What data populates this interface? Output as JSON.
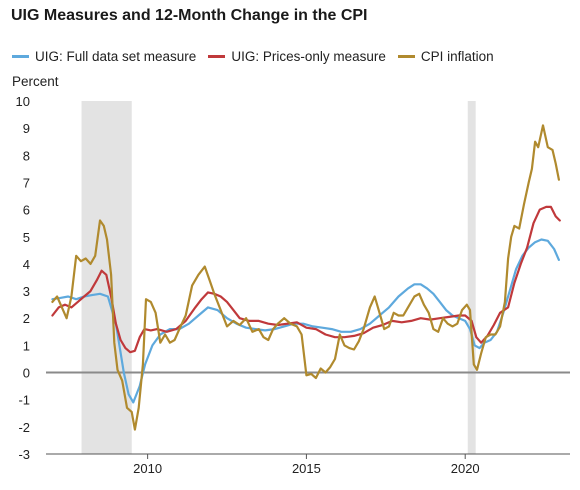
{
  "chart_data": {
    "type": "line",
    "title": "UIG Measures and 12-Month Change in the CPI",
    "ylabel": "Percent",
    "xlabel": "",
    "xlim": [
      2006.8,
      2023.3
    ],
    "ylim": [
      -3,
      10
    ],
    "y_ticks": [
      -3,
      -2,
      -1,
      0,
      1,
      2,
      3,
      4,
      5,
      6,
      7,
      8,
      9,
      10
    ],
    "x_ticks": [
      2010,
      2015,
      2020
    ],
    "y_tick_labels": [
      "-3",
      "-2",
      "-1",
      "0",
      "1",
      "2",
      "3",
      "4",
      "5",
      "6",
      "7",
      "8",
      "9",
      "10"
    ],
    "x_tick_labels": [
      "2010",
      "2015",
      "2020"
    ],
    "grid": "none",
    "zero_line": true,
    "legend_position": "top",
    "recessions": [
      [
        2007.92,
        2009.5
      ],
      [
        2020.08,
        2020.33
      ]
    ],
    "series": [
      {
        "name": "UIG: Full data set measure",
        "color": "#5ea9dd",
        "points": [
          [
            2007.0,
            2.7
          ],
          [
            2007.25,
            2.75
          ],
          [
            2007.5,
            2.8
          ],
          [
            2007.75,
            2.7
          ],
          [
            2008.0,
            2.8
          ],
          [
            2008.25,
            2.85
          ],
          [
            2008.5,
            2.9
          ],
          [
            2008.75,
            2.8
          ],
          [
            2009.0,
            1.8
          ],
          [
            2009.25,
            0.0
          ],
          [
            2009.4,
            -0.8
          ],
          [
            2009.55,
            -1.1
          ],
          [
            2009.75,
            -0.5
          ],
          [
            2009.92,
            0.3
          ],
          [
            2010.15,
            1.0
          ],
          [
            2010.4,
            1.4
          ],
          [
            2010.7,
            1.6
          ],
          [
            2011.0,
            1.6
          ],
          [
            2011.3,
            1.8
          ],
          [
            2011.6,
            2.1
          ],
          [
            2011.9,
            2.4
          ],
          [
            2012.2,
            2.3
          ],
          [
            2012.5,
            2.0
          ],
          [
            2012.8,
            1.8
          ],
          [
            2013.1,
            1.65
          ],
          [
            2013.4,
            1.6
          ],
          [
            2013.7,
            1.55
          ],
          [
            2014.0,
            1.6
          ],
          [
            2014.3,
            1.7
          ],
          [
            2014.6,
            1.8
          ],
          [
            2014.9,
            1.8
          ],
          [
            2015.2,
            1.7
          ],
          [
            2015.5,
            1.65
          ],
          [
            2015.8,
            1.6
          ],
          [
            2016.1,
            1.5
          ],
          [
            2016.4,
            1.5
          ],
          [
            2016.7,
            1.6
          ],
          [
            2017.0,
            1.8
          ],
          [
            2017.3,
            2.1
          ],
          [
            2017.6,
            2.4
          ],
          [
            2017.9,
            2.8
          ],
          [
            2018.2,
            3.1
          ],
          [
            2018.4,
            3.25
          ],
          [
            2018.6,
            3.25
          ],
          [
            2018.8,
            3.1
          ],
          [
            2019.0,
            2.9
          ],
          [
            2019.2,
            2.6
          ],
          [
            2019.4,
            2.3
          ],
          [
            2019.6,
            2.1
          ],
          [
            2019.8,
            2.0
          ],
          [
            2020.0,
            1.9
          ],
          [
            2020.15,
            1.6
          ],
          [
            2020.3,
            1.0
          ],
          [
            2020.45,
            0.9
          ],
          [
            2020.6,
            1.1
          ],
          [
            2020.8,
            1.2
          ],
          [
            2021.0,
            1.5
          ],
          [
            2021.2,
            2.2
          ],
          [
            2021.4,
            3.0
          ],
          [
            2021.6,
            3.8
          ],
          [
            2021.8,
            4.3
          ],
          [
            2022.0,
            4.6
          ],
          [
            2022.2,
            4.8
          ],
          [
            2022.4,
            4.9
          ],
          [
            2022.6,
            4.85
          ],
          [
            2022.8,
            4.55
          ],
          [
            2022.95,
            4.15
          ]
        ]
      },
      {
        "name": "UIG: Prices-only measure",
        "color": "#c0393b",
        "points": [
          [
            2007.0,
            2.1
          ],
          [
            2007.2,
            2.4
          ],
          [
            2007.4,
            2.5
          ],
          [
            2007.6,
            2.4
          ],
          [
            2007.8,
            2.6
          ],
          [
            2008.0,
            2.8
          ],
          [
            2008.2,
            3.0
          ],
          [
            2008.4,
            3.4
          ],
          [
            2008.55,
            3.75
          ],
          [
            2008.7,
            3.6
          ],
          [
            2008.85,
            2.8
          ],
          [
            2009.0,
            1.8
          ],
          [
            2009.15,
            1.2
          ],
          [
            2009.3,
            0.9
          ],
          [
            2009.45,
            0.75
          ],
          [
            2009.6,
            0.8
          ],
          [
            2009.75,
            1.3
          ],
          [
            2009.9,
            1.6
          ],
          [
            2010.1,
            1.55
          ],
          [
            2010.3,
            1.6
          ],
          [
            2010.6,
            1.5
          ],
          [
            2010.9,
            1.6
          ],
          [
            2011.2,
            1.9
          ],
          [
            2011.5,
            2.4
          ],
          [
            2011.7,
            2.7
          ],
          [
            2011.9,
            2.95
          ],
          [
            2012.1,
            2.9
          ],
          [
            2012.3,
            2.8
          ],
          [
            2012.5,
            2.6
          ],
          [
            2012.7,
            2.3
          ],
          [
            2012.9,
            2.0
          ],
          [
            2013.2,
            1.9
          ],
          [
            2013.5,
            1.9
          ],
          [
            2013.8,
            1.8
          ],
          [
            2014.1,
            1.75
          ],
          [
            2014.4,
            1.8
          ],
          [
            2014.7,
            1.85
          ],
          [
            2015.0,
            1.65
          ],
          [
            2015.3,
            1.6
          ],
          [
            2015.6,
            1.4
          ],
          [
            2015.9,
            1.3
          ],
          [
            2016.2,
            1.3
          ],
          [
            2016.5,
            1.35
          ],
          [
            2016.8,
            1.45
          ],
          [
            2017.1,
            1.65
          ],
          [
            2017.4,
            1.75
          ],
          [
            2017.7,
            1.9
          ],
          [
            2018.0,
            1.85
          ],
          [
            2018.3,
            1.9
          ],
          [
            2018.6,
            2.0
          ],
          [
            2018.9,
            1.95
          ],
          [
            2019.2,
            2.0
          ],
          [
            2019.5,
            2.05
          ],
          [
            2019.8,
            2.1
          ],
          [
            2020.0,
            2.1
          ],
          [
            2020.2,
            1.9
          ],
          [
            2020.35,
            1.3
          ],
          [
            2020.5,
            1.1
          ],
          [
            2020.7,
            1.35
          ],
          [
            2020.9,
            1.75
          ],
          [
            2021.1,
            2.2
          ],
          [
            2021.35,
            2.4
          ],
          [
            2021.55,
            3.3
          ],
          [
            2021.75,
            4.0
          ],
          [
            2021.95,
            4.6
          ],
          [
            2022.15,
            5.5
          ],
          [
            2022.35,
            6.0
          ],
          [
            2022.55,
            6.1
          ],
          [
            2022.7,
            6.1
          ],
          [
            2022.85,
            5.75
          ],
          [
            2022.98,
            5.6
          ]
        ]
      },
      {
        "name": "CPI inflation",
        "color": "#b08a2e",
        "points": [
          [
            2007.0,
            2.6
          ],
          [
            2007.15,
            2.8
          ],
          [
            2007.3,
            2.4
          ],
          [
            2007.45,
            2.0
          ],
          [
            2007.6,
            2.8
          ],
          [
            2007.75,
            4.3
          ],
          [
            2007.9,
            4.1
          ],
          [
            2008.05,
            4.2
          ],
          [
            2008.2,
            4.0
          ],
          [
            2008.35,
            4.3
          ],
          [
            2008.5,
            5.6
          ],
          [
            2008.62,
            5.4
          ],
          [
            2008.72,
            4.9
          ],
          [
            2008.85,
            3.6
          ],
          [
            2008.95,
            1.1
          ],
          [
            2009.05,
            0.1
          ],
          [
            2009.2,
            -0.3
          ],
          [
            2009.35,
            -1.3
          ],
          [
            2009.5,
            -1.45
          ],
          [
            2009.6,
            -2.1
          ],
          [
            2009.72,
            -1.3
          ],
          [
            2009.85,
            0.3
          ],
          [
            2009.95,
            2.7
          ],
          [
            2010.1,
            2.6
          ],
          [
            2010.25,
            2.2
          ],
          [
            2010.4,
            1.1
          ],
          [
            2010.55,
            1.4
          ],
          [
            2010.7,
            1.1
          ],
          [
            2010.85,
            1.2
          ],
          [
            2011.0,
            1.6
          ],
          [
            2011.2,
            2.1
          ],
          [
            2011.4,
            3.2
          ],
          [
            2011.6,
            3.6
          ],
          [
            2011.8,
            3.9
          ],
          [
            2011.95,
            3.4
          ],
          [
            2012.1,
            2.9
          ],
          [
            2012.3,
            2.3
          ],
          [
            2012.5,
            1.7
          ],
          [
            2012.7,
            1.9
          ],
          [
            2012.9,
            1.75
          ],
          [
            2013.1,
            2.0
          ],
          [
            2013.3,
            1.5
          ],
          [
            2013.5,
            1.6
          ],
          [
            2013.65,
            1.3
          ],
          [
            2013.8,
            1.2
          ],
          [
            2013.95,
            1.6
          ],
          [
            2014.1,
            1.8
          ],
          [
            2014.3,
            2.0
          ],
          [
            2014.5,
            1.8
          ],
          [
            2014.7,
            1.7
          ],
          [
            2014.85,
            1.4
          ],
          [
            2015.0,
            -0.1
          ],
          [
            2015.15,
            -0.05
          ],
          [
            2015.3,
            -0.2
          ],
          [
            2015.45,
            0.15
          ],
          [
            2015.6,
            0.0
          ],
          [
            2015.75,
            0.2
          ],
          [
            2015.9,
            0.5
          ],
          [
            2016.05,
            1.4
          ],
          [
            2016.2,
            1.0
          ],
          [
            2016.35,
            0.9
          ],
          [
            2016.5,
            0.85
          ],
          [
            2016.65,
            1.15
          ],
          [
            2016.8,
            1.6
          ],
          [
            2017.0,
            2.4
          ],
          [
            2017.15,
            2.8
          ],
          [
            2017.3,
            2.2
          ],
          [
            2017.45,
            1.6
          ],
          [
            2017.6,
            1.7
          ],
          [
            2017.75,
            2.2
          ],
          [
            2017.9,
            2.1
          ],
          [
            2018.05,
            2.1
          ],
          [
            2018.2,
            2.4
          ],
          [
            2018.4,
            2.8
          ],
          [
            2018.55,
            2.9
          ],
          [
            2018.7,
            2.5
          ],
          [
            2018.85,
            2.2
          ],
          [
            2019.0,
            1.6
          ],
          [
            2019.15,
            1.5
          ],
          [
            2019.3,
            2.0
          ],
          [
            2019.45,
            1.8
          ],
          [
            2019.6,
            1.7
          ],
          [
            2019.75,
            1.8
          ],
          [
            2019.9,
            2.3
          ],
          [
            2020.05,
            2.5
          ],
          [
            2020.15,
            2.3
          ],
          [
            2020.27,
            0.3
          ],
          [
            2020.37,
            0.1
          ],
          [
            2020.5,
            0.7
          ],
          [
            2020.65,
            1.3
          ],
          [
            2020.8,
            1.4
          ],
          [
            2020.95,
            1.4
          ],
          [
            2021.1,
            1.7
          ],
          [
            2021.25,
            2.6
          ],
          [
            2021.35,
            4.2
          ],
          [
            2021.45,
            5.0
          ],
          [
            2021.55,
            5.4
          ],
          [
            2021.7,
            5.3
          ],
          [
            2021.85,
            6.2
          ],
          [
            2022.0,
            7.0
          ],
          [
            2022.1,
            7.5
          ],
          [
            2022.2,
            8.5
          ],
          [
            2022.3,
            8.3
          ],
          [
            2022.45,
            9.1
          ],
          [
            2022.6,
            8.3
          ],
          [
            2022.75,
            8.2
          ],
          [
            2022.85,
            7.7
          ],
          [
            2022.95,
            7.1
          ]
        ]
      }
    ]
  }
}
